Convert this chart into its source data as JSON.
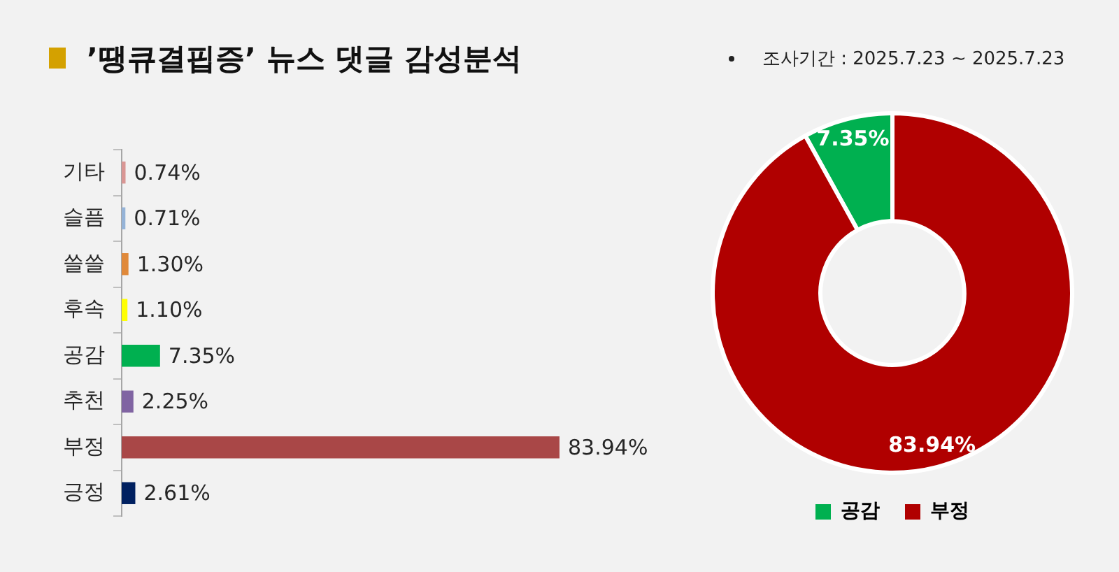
{
  "chart_data": [
    {
      "type": "bar",
      "title": "’땡큐결핍증’ 뉴스 댓글 감성분석",
      "orientation": "horizontal",
      "categories": [
        "기타",
        "슬픔",
        "쓸쓸",
        "후속",
        "공감",
        "추천",
        "부정",
        "긍정"
      ],
      "values": [
        0.74,
        0.71,
        1.3,
        1.1,
        7.35,
        2.25,
        83.94,
        2.61
      ],
      "colors": [
        "#d99694",
        "#95b3d7",
        "#e0893a",
        "#ffff00",
        "#00b050",
        "#8064a2",
        "#a94747",
        "#002060"
      ],
      "value_labels": [
        "0.74%",
        "0.71%",
        "1.30%",
        "1.10%",
        "7.35%",
        "2.25%",
        "83.94%",
        "2.61%"
      ],
      "tick_labels": "y"
    },
    {
      "type": "donut",
      "subtitle": "조사기간 : 2025.7.23 ~ 2025.7.23",
      "categories": [
        "공감",
        "부정"
      ],
      "values": [
        7.35,
        83.94
      ],
      "colors": [
        "#00b050",
        "#b00000"
      ],
      "value_labels": [
        "7.35%",
        "83.94%"
      ],
      "legend": "bottom"
    }
  ]
}
